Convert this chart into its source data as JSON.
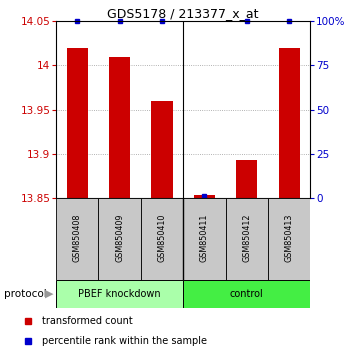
{
  "title": "GDS5178 / 213377_x_at",
  "samples": [
    "GSM850408",
    "GSM850409",
    "GSM850410",
    "GSM850411",
    "GSM850412",
    "GSM850413"
  ],
  "red_values": [
    14.02,
    14.01,
    13.96,
    13.854,
    13.893,
    14.02
  ],
  "blue_values": [
    100,
    100,
    100,
    1,
    100,
    100
  ],
  "ylim_left": [
    13.85,
    14.05
  ],
  "ylim_right": [
    0,
    100
  ],
  "yticks_left": [
    13.85,
    13.9,
    13.95,
    14.0,
    14.05
  ],
  "yticks_right": [
    0,
    25,
    50,
    75,
    100
  ],
  "ytick_labels_left": [
    "13.85",
    "13.9",
    "13.95",
    "14",
    "14.05"
  ],
  "ytick_labels_right": [
    "0",
    "25",
    "50",
    "75",
    "100%"
  ],
  "bar_color": "#CC0000",
  "dot_color": "#0000CC",
  "bg_color": "#FFFFFF",
  "grid_color": "#888888",
  "sample_bg": "#C8C8C8",
  "knockdown_color": "#AAFFAA",
  "control_color": "#44EE44",
  "legend_red": "transformed count",
  "legend_blue": "percentile rank within the sample",
  "bar_width": 0.5,
  "group_split": 2.5,
  "n_samples": 6
}
